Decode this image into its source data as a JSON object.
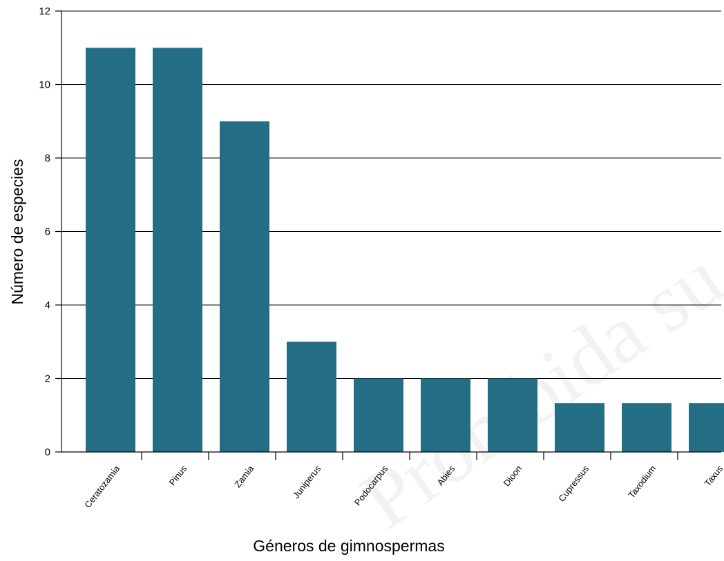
{
  "chart_data": {
    "type": "bar",
    "title": "",
    "xlabel": "Géneros de gimnospermas",
    "ylabel": "Número de especies",
    "categories": [
      "Ceratozamia",
      "Pinus",
      "Zamia",
      "Juniperus",
      "Podocarpus",
      "Abies",
      "Dioon",
      "Cupressus",
      "Taxodium",
      "Taxus"
    ],
    "values": [
      11,
      11,
      9,
      3,
      2,
      2,
      2,
      1.33,
      1.33,
      1.33
    ],
    "ylim": [
      0,
      12
    ],
    "yticks": [
      0,
      2,
      4,
      6,
      8,
      10,
      12
    ],
    "grid": "horizontal",
    "legend": "none",
    "bar_color": "#246e85"
  },
  "watermark": {
    "text": "Prohibida su"
  }
}
